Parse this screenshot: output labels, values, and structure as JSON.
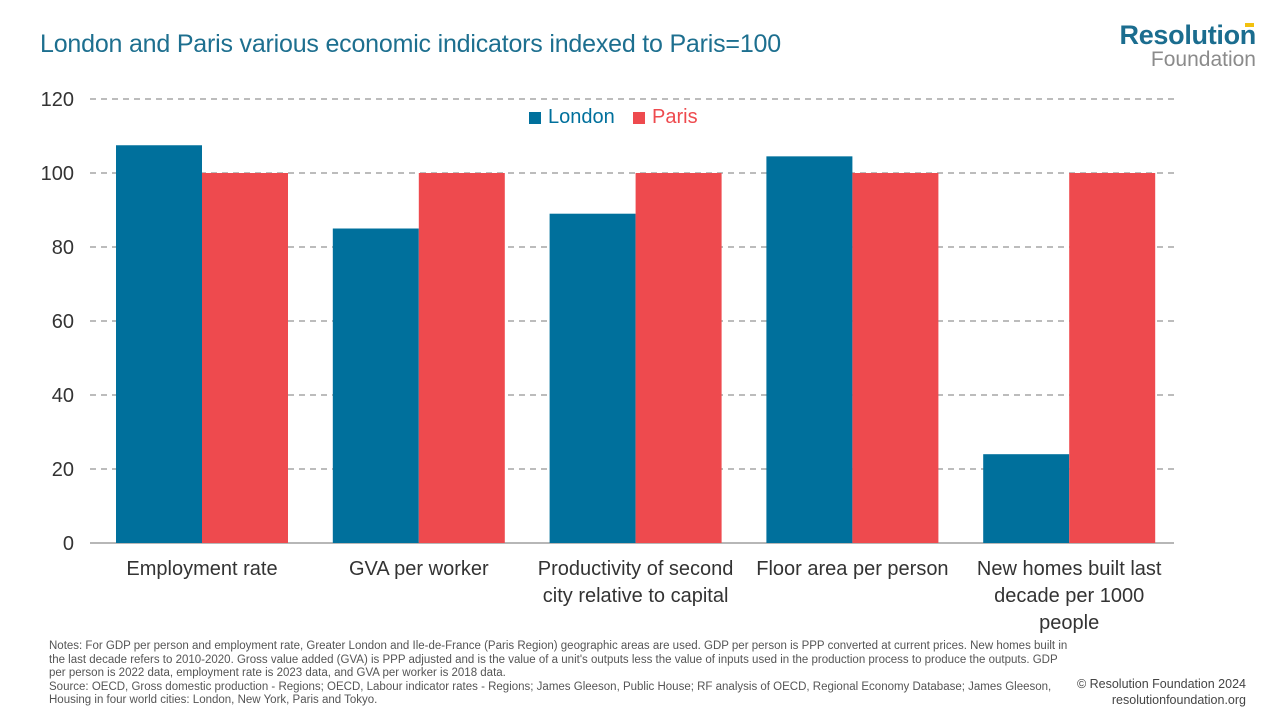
{
  "header": {
    "title": "London and Paris various economic indicators indexed to Paris=100"
  },
  "logo": {
    "line1": "Resolution",
    "line2": "Foundation",
    "accent_color": "#f2c10f"
  },
  "chart_data": {
    "type": "bar",
    "title": "London and Paris various economic indicators indexed to Paris=100",
    "xlabel": "",
    "ylabel": "",
    "ylim": [
      0,
      120
    ],
    "yticks": [
      0,
      20,
      40,
      60,
      80,
      100,
      120
    ],
    "grid": true,
    "legend_position": "top-center",
    "categories": [
      "Employment rate",
      "GVA per worker",
      "Productivity of second city relative to capital",
      "Floor area per person",
      "New homes built last decade per 1000 people"
    ],
    "category_lines": [
      [
        "Employment rate"
      ],
      [
        "GVA per worker"
      ],
      [
        "Productivity of second",
        "city relative to capital"
      ],
      [
        "Floor area per person"
      ],
      [
        "New homes built last",
        "decade per 1000",
        "people"
      ]
    ],
    "series": [
      {
        "name": "London",
        "color": "#00709c",
        "values": [
          107.5,
          85,
          89,
          104.5,
          24
        ]
      },
      {
        "name": "Paris",
        "color": "#ee4a4e",
        "values": [
          100,
          100,
          100,
          100,
          100
        ]
      }
    ]
  },
  "footer": {
    "notes_line1": "Notes: For GDP per person and employment rate, Greater London and Ile-de-France (Paris Region) geographic areas are used. GDP per person is PPP converted at current prices. New homes built in the last decade refers to 2010-2020. Gross value added (GVA) is PPP adjusted and is the value of a unit's outputs less the value of inputs used in the production process to produce the outputs. GDP per person is 2022 data, employment rate is 2023 data, and GVA per worker is 2018 data.",
    "source_line": "Source: OECD, Gross domestic production - Regions; OECD, Labour indicator rates - Regions; James Gleeson, Public House; RF analysis of OECD, Regional Economy Database; James Gleeson, Housing in four world cities: London, New York, Paris and Tokyo.",
    "copyright": "© Resolution Foundation 2024",
    "website": "resolutionfoundation.org"
  }
}
